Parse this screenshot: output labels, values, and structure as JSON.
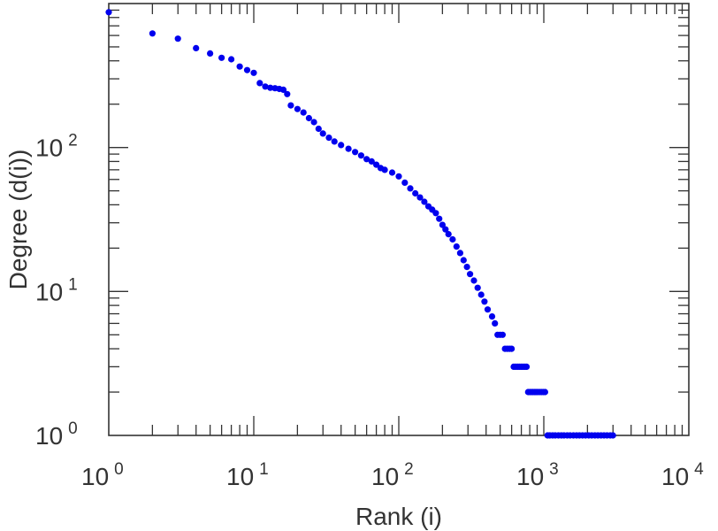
{
  "chart_data": {
    "type": "scatter",
    "xlabel": "Rank (i)",
    "ylabel": "Degree (d(i))",
    "xscale": "log",
    "yscale": "log",
    "xlim": [
      1,
      10000
    ],
    "ylim": [
      1,
      1000
    ],
    "x_ticks": [
      {
        "base": "10",
        "exp": "0",
        "value": 1
      },
      {
        "base": "10",
        "exp": "1",
        "value": 10
      },
      {
        "base": "10",
        "exp": "2",
        "value": 100
      },
      {
        "base": "10",
        "exp": "3",
        "value": 1000
      },
      {
        "base": "10",
        "exp": "4",
        "value": 10000
      }
    ],
    "y_ticks": [
      {
        "base": "10",
        "exp": "0",
        "value": 1
      },
      {
        "base": "10",
        "exp": "1",
        "value": 10
      },
      {
        "base": "10",
        "exp": "2",
        "value": 100
      }
    ],
    "grid": false,
    "marker_color": "#0000ee",
    "axis_color": "#333333",
    "series": [
      {
        "points": [
          [
            1,
            870
          ],
          [
            2,
            620
          ],
          [
            3,
            570
          ],
          [
            4,
            490
          ],
          [
            5,
            450
          ],
          [
            6,
            420
          ],
          [
            7,
            410
          ],
          [
            8,
            365
          ],
          [
            9,
            345
          ],
          [
            10,
            330
          ],
          [
            11,
            280
          ],
          [
            12,
            265
          ],
          [
            13,
            260
          ],
          [
            14,
            258
          ],
          [
            15,
            255
          ],
          [
            16,
            252
          ],
          [
            17,
            235
          ],
          [
            18,
            196
          ],
          [
            20,
            185
          ],
          [
            22,
            175
          ],
          [
            24,
            160
          ],
          [
            26,
            150
          ],
          [
            28,
            135
          ],
          [
            30,
            125
          ],
          [
            33,
            117
          ],
          [
            36,
            110
          ],
          [
            40,
            104
          ],
          [
            45,
            98
          ],
          [
            50,
            93
          ],
          [
            55,
            88
          ],
          [
            60,
            83
          ],
          [
            65,
            80
          ],
          [
            70,
            76
          ],
          [
            75,
            72
          ],
          [
            80,
            70
          ],
          [
            90,
            67
          ],
          [
            100,
            63
          ],
          [
            110,
            57
          ],
          [
            120,
            52
          ],
          [
            130,
            48
          ],
          [
            140,
            45
          ],
          [
            150,
            42
          ],
          [
            160,
            39
          ],
          [
            170,
            37
          ],
          [
            180,
            35
          ],
          [
            190,
            32
          ],
          [
            200,
            29
          ],
          [
            210,
            27
          ],
          [
            220,
            25
          ],
          [
            235,
            23
          ],
          [
            250,
            20.5
          ],
          [
            265,
            18.5
          ],
          [
            280,
            16.5
          ],
          [
            295,
            14.8
          ],
          [
            310,
            13.2
          ],
          [
            330,
            11.9
          ],
          [
            350,
            10.6
          ],
          [
            370,
            9.5
          ],
          [
            390,
            8.5
          ],
          [
            410,
            7.5
          ],
          [
            440,
            6.7
          ],
          [
            460,
            6
          ],
          [
            480,
            5
          ],
          [
            500,
            5
          ],
          [
            520,
            5
          ],
          [
            540,
            4
          ],
          [
            560,
            4
          ],
          [
            580,
            4
          ],
          [
            600,
            4
          ],
          [
            620,
            3
          ],
          [
            640,
            3
          ],
          [
            660,
            3
          ],
          [
            680,
            3
          ],
          [
            700,
            3
          ],
          [
            720,
            3
          ],
          [
            740,
            3
          ],
          [
            760,
            3
          ],
          [
            780,
            2
          ],
          [
            800,
            2
          ],
          [
            820,
            2
          ],
          [
            840,
            2
          ],
          [
            860,
            2
          ],
          [
            880,
            2
          ],
          [
            900,
            2
          ],
          [
            930,
            2
          ],
          [
            960,
            2
          ],
          [
            990,
            2
          ],
          [
            1020,
            2
          ],
          [
            1060,
            1
          ],
          [
            1100,
            1
          ],
          [
            1150,
            1
          ],
          [
            1200,
            1
          ],
          [
            1260,
            1
          ],
          [
            1320,
            1
          ],
          [
            1380,
            1
          ],
          [
            1450,
            1
          ],
          [
            1520,
            1
          ],
          [
            1600,
            1
          ],
          [
            1680,
            1
          ],
          [
            1760,
            1
          ],
          [
            1850,
            1
          ],
          [
            1940,
            1
          ],
          [
            2040,
            1
          ],
          [
            2140,
            1
          ],
          [
            2250,
            1
          ],
          [
            2360,
            1
          ],
          [
            2480,
            1
          ],
          [
            2600,
            1
          ],
          [
            2730,
            1
          ],
          [
            2870,
            1
          ],
          [
            3000,
            1
          ]
        ]
      }
    ]
  }
}
